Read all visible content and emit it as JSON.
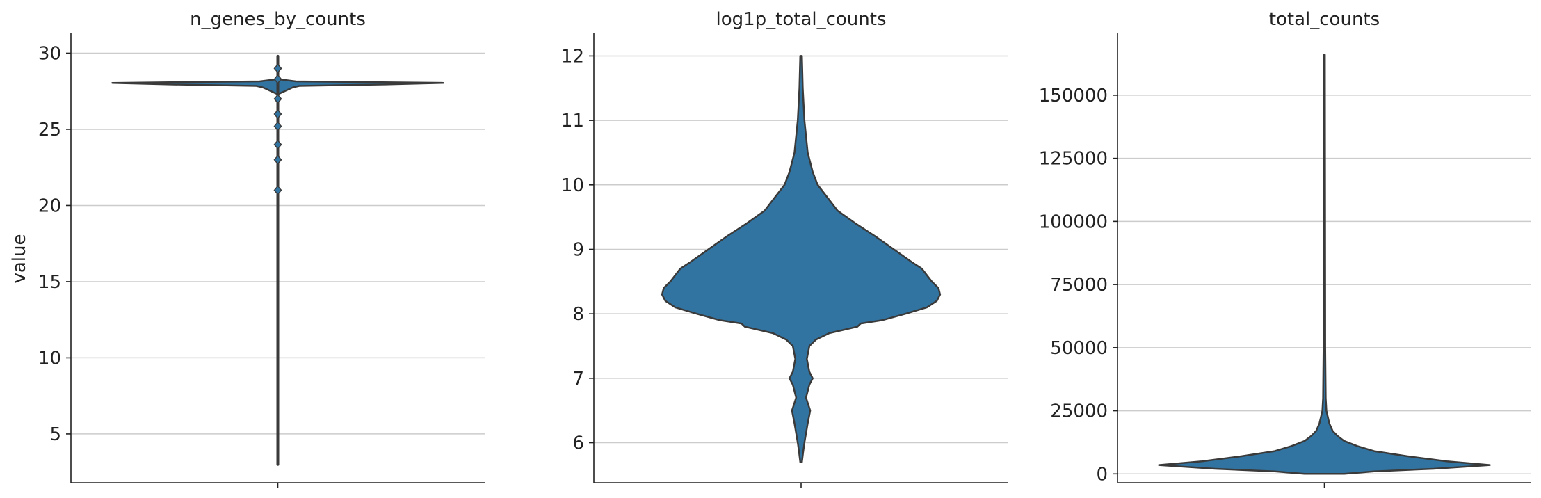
{
  "chart_data": [
    {
      "type": "violin",
      "title": "n_genes_by_counts",
      "ylabel": "value",
      "ylim": [
        1.8,
        31.3
      ],
      "yticks": [
        5,
        10,
        15,
        20,
        25,
        30
      ],
      "grid": true,
      "color": "#3274a1",
      "min": 3,
      "max": 29.8,
      "outliers": [
        29,
        28.3,
        27,
        26,
        25.2,
        24,
        23,
        21
      ],
      "density": [
        [
          28.3,
          0
        ],
        [
          28.15,
          0.11
        ],
        [
          28.1,
          0.58
        ],
        [
          28.05,
          1
        ],
        [
          27.95,
          0.65
        ],
        [
          27.85,
          0.13
        ],
        [
          27.75,
          0.09
        ],
        [
          27.5,
          0.04
        ],
        [
          27.3,
          0
        ]
      ]
    },
    {
      "type": "violin",
      "title": "log1p_total_counts",
      "ylabel": "",
      "ylim": [
        5.38,
        12.35
      ],
      "yticks": [
        6,
        7,
        8,
        9,
        10,
        11,
        12
      ],
      "grid": true,
      "color": "#3274a1",
      "min": 5.7,
      "max": 12.0,
      "density": [
        [
          12.0,
          0.005
        ],
        [
          11.5,
          0.01
        ],
        [
          11.0,
          0.02
        ],
        [
          10.5,
          0.04
        ],
        [
          10.2,
          0.07
        ],
        [
          10.0,
          0.1
        ],
        [
          9.8,
          0.16
        ],
        [
          9.6,
          0.22
        ],
        [
          9.4,
          0.33
        ],
        [
          9.2,
          0.45
        ],
        [
          9.0,
          0.56
        ],
        [
          8.8,
          0.67
        ],
        [
          8.7,
          0.73
        ],
        [
          8.6,
          0.76
        ],
        [
          8.5,
          0.79
        ],
        [
          8.4,
          0.83
        ],
        [
          8.3,
          0.84
        ],
        [
          8.2,
          0.82
        ],
        [
          8.1,
          0.76
        ],
        [
          8.0,
          0.63
        ],
        [
          7.9,
          0.49
        ],
        [
          7.85,
          0.36
        ],
        [
          7.8,
          0.34
        ],
        [
          7.7,
          0.17
        ],
        [
          7.6,
          0.09
        ],
        [
          7.5,
          0.05
        ],
        [
          7.3,
          0.035
        ],
        [
          7.1,
          0.05
        ],
        [
          7.0,
          0.07
        ],
        [
          6.9,
          0.05
        ],
        [
          6.7,
          0.03
        ],
        [
          6.5,
          0.055
        ],
        [
          6.3,
          0.04
        ],
        [
          6.0,
          0.02
        ],
        [
          5.85,
          0.012
        ],
        [
          5.7,
          0.005
        ]
      ]
    },
    {
      "type": "violin",
      "title": "total_counts",
      "ylabel": "",
      "ylim": [
        -3500,
        174500
      ],
      "yticks": [
        0,
        25000,
        50000,
        75000,
        100000,
        125000,
        150000
      ],
      "grid": true,
      "color": "#3274a1",
      "min": 0,
      "max": 166000,
      "density": [
        [
          166000,
          0.003
        ],
        [
          100000,
          0.004
        ],
        [
          50000,
          0.005
        ],
        [
          30000,
          0.008
        ],
        [
          25000,
          0.012
        ],
        [
          20000,
          0.03
        ],
        [
          17000,
          0.05
        ],
        [
          15000,
          0.08
        ],
        [
          13000,
          0.12
        ],
        [
          11000,
          0.2
        ],
        [
          9000,
          0.3
        ],
        [
          7000,
          0.5
        ],
        [
          5000,
          0.74
        ],
        [
          3500,
          1
        ],
        [
          2000,
          0.66
        ],
        [
          1000,
          0.3
        ],
        [
          0,
          0.12
        ]
      ]
    }
  ]
}
